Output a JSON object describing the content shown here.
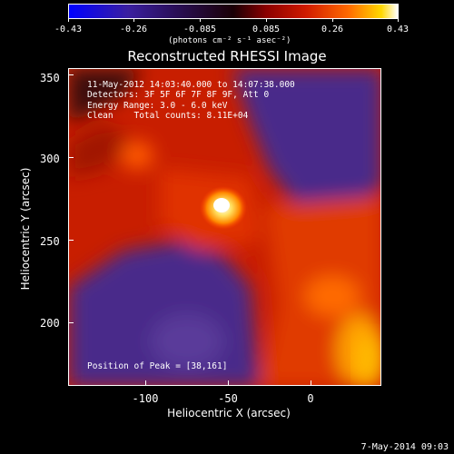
{
  "colorbar": {
    "ticks": [
      "-0.43",
      "-0.26",
      "-0.085",
      "0.085",
      "0.26",
      "0.43"
    ],
    "units": "(photons cm⁻² s⁻¹ asec⁻²)"
  },
  "title": "Reconstructed RHESSI Image",
  "info": {
    "time_range": "11-May-2012 14:03:40.000 to 14:07:38.000",
    "detectors": "Detectors: 3F 5F 6F 7F 8F 9F, Att 0",
    "energy": "Energy Range: 3.0 - 6.0 keV",
    "clean": "Clean    Total counts: 8.11E+04",
    "peak": "Position of Peak = [38,161]"
  },
  "axes": {
    "ylabel": "Heliocentric Y (arcsec)",
    "xlabel": "Heliocentric X (arcsec)",
    "yticks": [
      "350",
      "300",
      "250",
      "200"
    ],
    "xticks": [
      "-100",
      "-50",
      "0"
    ]
  },
  "footer": {
    "date": "7-May-2014 09:03"
  },
  "colors": {
    "background": "#000000",
    "hot": "#ffffff",
    "warm": "#ff5a00",
    "cool": "#4a2a8a"
  }
}
